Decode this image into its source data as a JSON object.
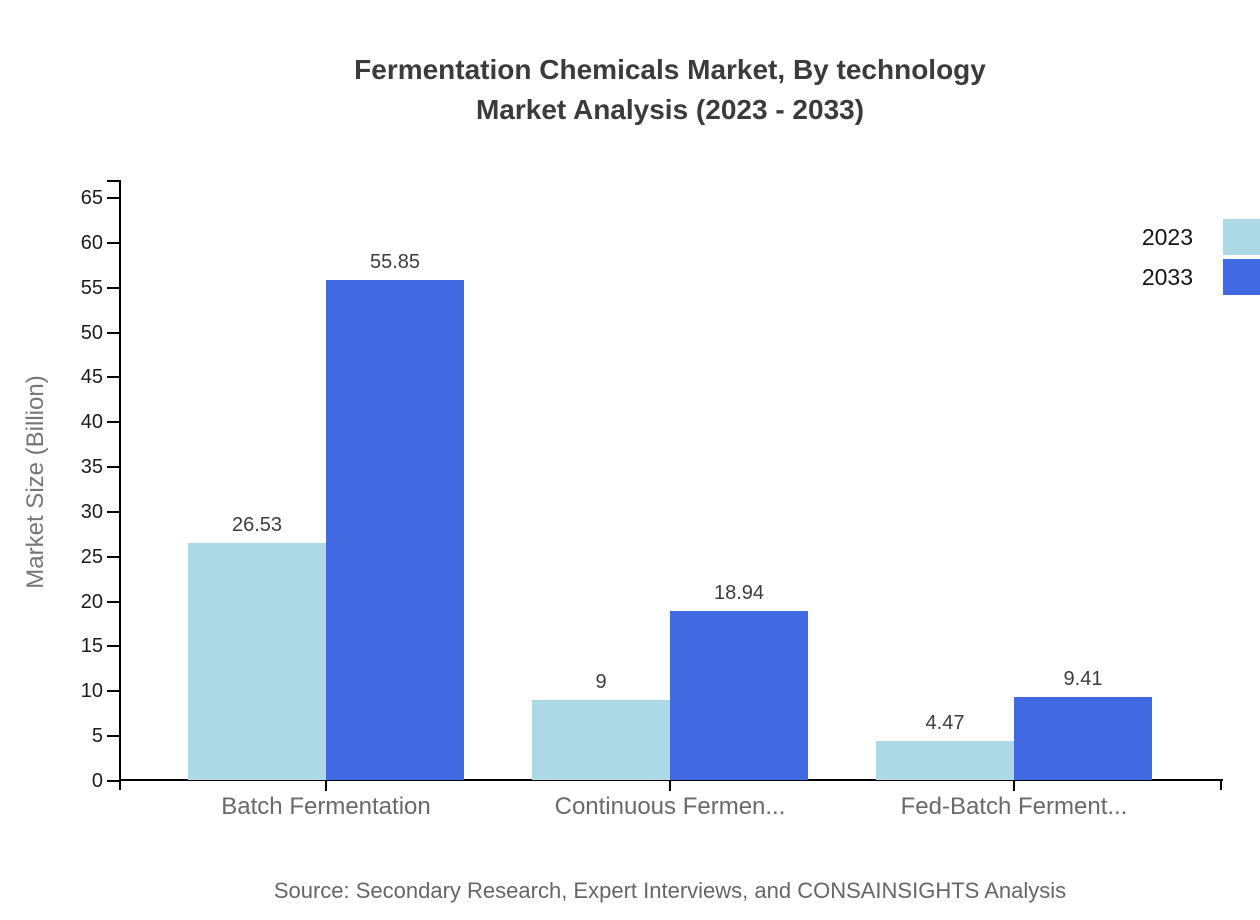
{
  "title": {
    "line1": "Fermentation Chemicals Market, By technology",
    "line2": "Market Analysis (2023 - 2033)"
  },
  "source_note": "Source: Secondary Research, Expert Interviews, and CONSAINSIGHTS Analysis",
  "colors": {
    "series_2023": "#ADD8E6",
    "series_2033": "#4169E1",
    "axis": "#000000",
    "title_text": "#3b3b3b",
    "tick_label": "#1b1b1b",
    "category_label": "#696969",
    "value_label": "#3d3d3d",
    "axis_title": "#767676",
    "legend_label": "#151515",
    "source_text": "#666666"
  },
  "chart_data": {
    "type": "bar",
    "title": "Fermentation Chemicals Market, By technology Market Analysis (2023 - 2033)",
    "categories": [
      "Batch Fermentation",
      "Continuous Fermen...",
      "Fed-Batch Ferment..."
    ],
    "series": [
      {
        "name": "2023",
        "color": "#ADD8E6",
        "values": [
          26.53,
          9,
          4.47
        ],
        "labels": [
          "26.53",
          "9",
          "4.47"
        ]
      },
      {
        "name": "2033",
        "color": "#4169E1",
        "values": [
          55.85,
          18.94,
          9.41
        ],
        "labels": [
          "55.85",
          "18.94",
          "9.41"
        ]
      }
    ],
    "xlabel": "",
    "ylabel": "Market Size (Billion)",
    "yticks": [
      0,
      5,
      10,
      15,
      20,
      25,
      30,
      35,
      40,
      45,
      50,
      55,
      60,
      65
    ],
    "ylim": [
      0,
      67
    ],
    "grid": false,
    "legend_position": "top-right"
  }
}
